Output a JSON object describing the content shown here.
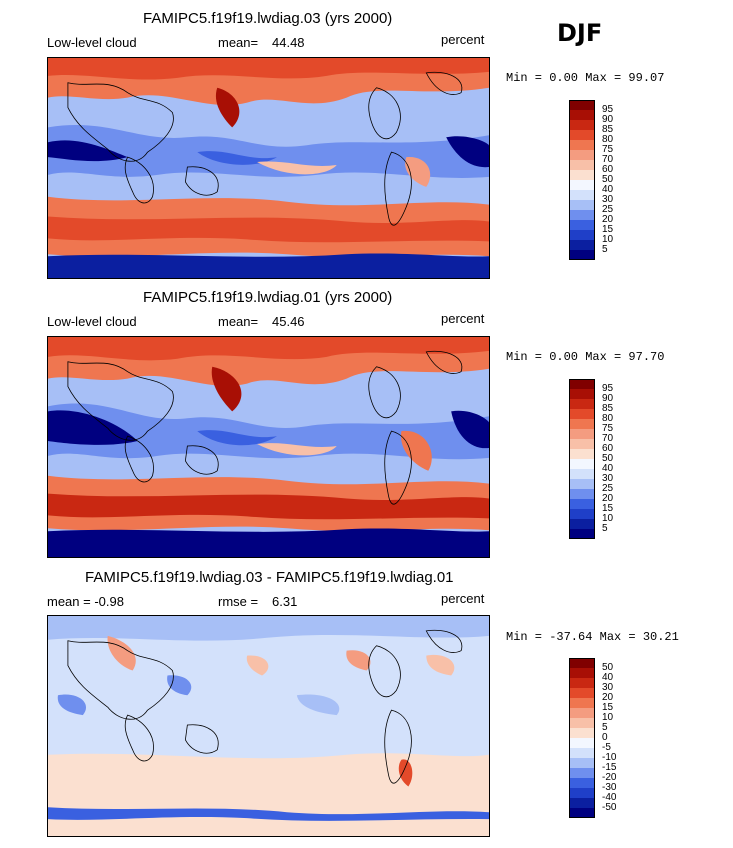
{
  "season": "DJF",
  "palette_main": [
    "#000080",
    "#0b1fa0",
    "#1f3fc8",
    "#3a60e0",
    "#6f8fee",
    "#a7bff6",
    "#d3e1fb",
    "#f3f7ff",
    "#fbe0d0",
    "#f8c0a8",
    "#f49c80",
    "#ef7650",
    "#e34a2a",
    "#c92812",
    "#a80f05",
    "#800000"
  ],
  "palette_diff": [
    "#000080",
    "#0b1fa0",
    "#1f3fc8",
    "#3a60e0",
    "#6f8fee",
    "#a7bff6",
    "#d3e1fb",
    "#f3f7ff",
    "#fbe0d0",
    "#f8c0a8",
    "#f49c80",
    "#ef7650",
    "#e34a2a",
    "#c92812",
    "#a80f05",
    "#800000"
  ],
  "panels": [
    {
      "title": "FAMIPC5.f19f19.lwdiag.03 (yrs 2000)",
      "left_label": "Low-level cloud",
      "mean_label": "mean=",
      "mean_value": "44.48",
      "units": "percent",
      "minmax": "Min =   0.00 Max =  99.07",
      "legend_labels": [
        "95",
        "90",
        "85",
        "80",
        "75",
        "70",
        "60",
        "50",
        "40",
        "30",
        "25",
        "20",
        "15",
        "10",
        "5"
      ]
    },
    {
      "title": "FAMIPC5.f19f19.lwdiag.01 (yrs 2000)",
      "left_label": "Low-level cloud",
      "mean_label": "mean=",
      "mean_value": "45.46",
      "units": "percent",
      "minmax": "Min =   0.00 Max =  97.70",
      "legend_labels": [
        "95",
        "90",
        "85",
        "80",
        "75",
        "70",
        "60",
        "50",
        "40",
        "30",
        "25",
        "20",
        "15",
        "10",
        "5"
      ]
    },
    {
      "title": "FAMIPC5.f19f19.lwdiag.03 - FAMIPC5.f19f19.lwdiag.01",
      "left_label": "mean =   -0.98",
      "mean_label": "rmse =",
      "mean_value": "6.31",
      "units": "percent",
      "minmax": "Min = -37.64 Max =  30.21",
      "legend_labels": [
        "50",
        "40",
        "30",
        "20",
        "15",
        "10",
        "5",
        "0",
        "-5",
        "-10",
        "-15",
        "-20",
        "-30",
        "-40",
        "-50"
      ]
    }
  ]
}
